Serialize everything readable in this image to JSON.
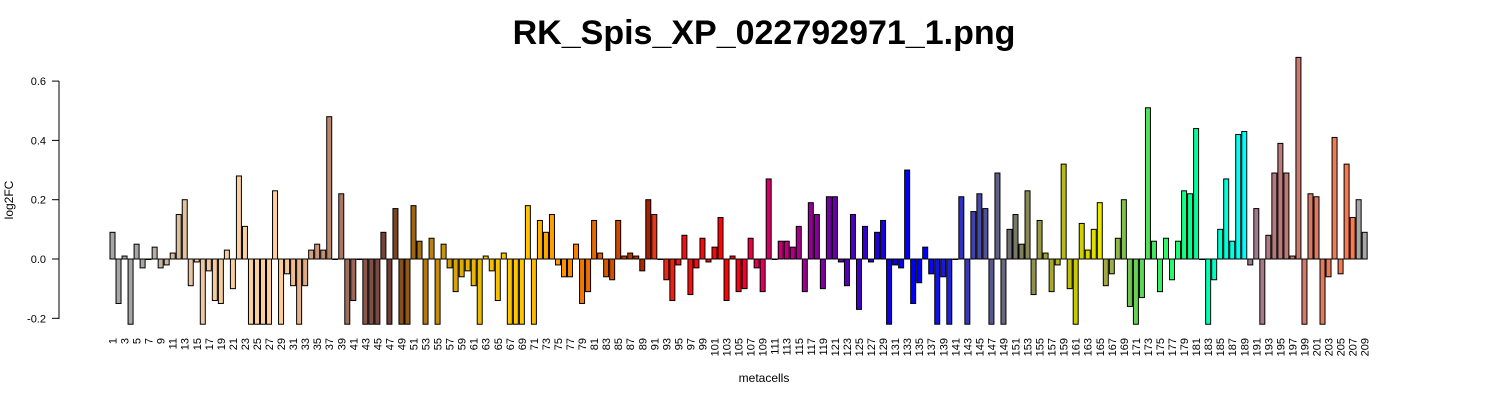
{
  "chart_data": {
    "type": "bar",
    "title": "RK_Spis_XP_022792971_1.png",
    "xlabel": "metacells",
    "ylabel": "log2FC",
    "ylim": [
      -0.2,
      0.68
    ],
    "yticks": [
      -0.2,
      0.0,
      0.2,
      0.4,
      0.6
    ],
    "ytick_labels": [
      "-0.2",
      "0.0",
      "0.2",
      "0.4",
      "0.6"
    ],
    "grid": false,
    "categories": [
      "1",
      "2",
      "3",
      "4",
      "5",
      "6",
      "7",
      "8",
      "9",
      "10",
      "11",
      "12",
      "13",
      "14",
      "15",
      "16",
      "17",
      "18",
      "19",
      "20",
      "21",
      "22",
      "23",
      "24",
      "25",
      "26",
      "27",
      "28",
      "29",
      "30",
      "31",
      "32",
      "33",
      "34",
      "35",
      "36",
      "37",
      "38",
      "39",
      "40",
      "41",
      "42",
      "43",
      "44",
      "45",
      "46",
      "47",
      "48",
      "49",
      "50",
      "51",
      "52",
      "53",
      "54",
      "55",
      "56",
      "57",
      "58",
      "59",
      "60",
      "61",
      "62",
      "63",
      "64",
      "65",
      "66",
      "67",
      "68",
      "69",
      "70",
      "71",
      "72",
      "73",
      "74",
      "75",
      "76",
      "77",
      "78",
      "79",
      "80",
      "81",
      "82",
      "83",
      "84",
      "85",
      "86",
      "87",
      "88",
      "89",
      "90",
      "91",
      "92",
      "93",
      "94",
      "95",
      "96",
      "97",
      "98",
      "99",
      "100",
      "101",
      "102",
      "103",
      "104",
      "105",
      "106",
      "107",
      "108",
      "109",
      "110",
      "111",
      "112",
      "113",
      "114",
      "115",
      "116",
      "117",
      "118",
      "119",
      "120",
      "121",
      "122",
      "123",
      "124",
      "125",
      "126",
      "127",
      "128",
      "129",
      "130",
      "131",
      "132",
      "133",
      "134",
      "135",
      "136",
      "137",
      "138",
      "139",
      "140",
      "141",
      "142",
      "143",
      "144",
      "145",
      "146",
      "147",
      "148",
      "149",
      "150",
      "151",
      "152",
      "153",
      "154",
      "155",
      "156",
      "157",
      "158",
      "159",
      "160",
      "161",
      "162",
      "163",
      "164",
      "165",
      "166",
      "167",
      "168",
      "169",
      "170",
      "171",
      "172",
      "173",
      "174",
      "175",
      "176",
      "177",
      "178",
      "179",
      "180",
      "181",
      "182",
      "183",
      "184",
      "185",
      "186",
      "187",
      "188",
      "189",
      "190",
      "191",
      "192",
      "193",
      "194",
      "195",
      "196",
      "197",
      "198",
      "199",
      "200",
      "201",
      "202",
      "203",
      "204",
      "205",
      "206",
      "207",
      "208",
      "209"
    ],
    "tick_labels": [
      "1",
      "3",
      "5",
      "7",
      "9",
      "11",
      "13",
      "15",
      "17",
      "19",
      "21",
      "23",
      "25",
      "27",
      "29",
      "31",
      "33",
      "35",
      "37",
      "39",
      "41",
      "43",
      "45",
      "47",
      "49",
      "51",
      "53",
      "55",
      "57",
      "59",
      "61",
      "63",
      "65",
      "67",
      "69",
      "71",
      "73",
      "75",
      "77",
      "79",
      "81",
      "83",
      "85",
      "87",
      "89",
      "91",
      "93",
      "95",
      "97",
      "99",
      "101",
      "103",
      "105",
      "107",
      "109",
      "111",
      "113",
      "115",
      "117",
      "119",
      "121",
      "123",
      "125",
      "127",
      "129",
      "131",
      "133",
      "135",
      "137",
      "139",
      "141",
      "143",
      "145",
      "147",
      "149",
      "151",
      "153",
      "155",
      "157",
      "159",
      "161",
      "163",
      "165",
      "167",
      "169",
      "171",
      "173",
      "175",
      "177",
      "179",
      "181",
      "183",
      "185",
      "187",
      "189",
      "191",
      "193",
      "195",
      "197",
      "199",
      "201",
      "203",
      "205",
      "207",
      "209"
    ],
    "values": [
      0.09,
      -0.15,
      0.01,
      -0.22,
      0.05,
      -0.03,
      0.0,
      0.04,
      -0.03,
      -0.02,
      0.02,
      0.15,
      0.2,
      -0.09,
      -0.01,
      -0.22,
      -0.04,
      -0.14,
      -0.15,
      0.03,
      -0.1,
      0.28,
      0.11,
      -0.22,
      -0.22,
      -0.22,
      -0.22,
      0.23,
      -0.22,
      -0.05,
      -0.09,
      -0.22,
      -0.09,
      0.03,
      0.05,
      0.03,
      0.48,
      0.0,
      0.22,
      -0.22,
      -0.14,
      0.0,
      -0.22,
      -0.22,
      -0.22,
      0.09,
      -0.22,
      0.17,
      -0.22,
      -0.22,
      0.18,
      0.06,
      -0.22,
      0.07,
      -0.22,
      0.05,
      -0.03,
      -0.11,
      -0.06,
      -0.04,
      -0.09,
      -0.22,
      0.01,
      -0.04,
      -0.14,
      0.02,
      -0.22,
      -0.22,
      -0.22,
      0.18,
      -0.22,
      0.13,
      0.09,
      0.15,
      -0.02,
      -0.06,
      -0.06,
      0.05,
      -0.15,
      -0.11,
      0.13,
      0.02,
      -0.06,
      -0.07,
      0.13,
      0.01,
      0.02,
      0.01,
      -0.04,
      0.2,
      0.15,
      0.0,
      -0.07,
      -0.14,
      -0.02,
      0.08,
      -0.12,
      -0.03,
      0.07,
      -0.01,
      0.04,
      0.14,
      -0.14,
      0.01,
      -0.11,
      -0.1,
      0.07,
      -0.03,
      -0.11,
      0.27,
      0.0,
      0.06,
      0.06,
      0.04,
      0.11,
      -0.11,
      0.19,
      0.15,
      -0.1,
      0.21,
      0.21,
      -0.01,
      -0.09,
      0.15,
      -0.17,
      0.11,
      -0.01,
      0.09,
      0.13,
      -0.22,
      -0.02,
      -0.03,
      0.3,
      -0.15,
      -0.08,
      0.04,
      -0.05,
      -0.22,
      -0.06,
      -0.22,
      0.0,
      0.21,
      -0.22,
      0.16,
      0.22,
      0.17,
      -0.22,
      0.29,
      -0.22,
      0.1,
      0.15,
      0.05,
      0.23,
      -0.12,
      0.13,
      0.02,
      -0.11,
      -0.02,
      0.32,
      -0.1,
      -0.22,
      0.12,
      0.03,
      0.1,
      0.19,
      -0.09,
      -0.05,
      0.07,
      0.2,
      -0.16,
      -0.22,
      -0.13,
      0.51,
      0.06,
      -0.11,
      0.07,
      -0.07,
      0.06,
      0.23,
      0.22,
      0.44,
      0.0,
      -0.22,
      -0.07,
      0.1,
      0.27,
      0.06,
      0.42,
      0.43,
      -0.02,
      0.17,
      -0.22,
      0.08,
      0.29,
      0.39,
      0.29,
      0.01,
      0.68,
      -0.22,
      0.22,
      0.21,
      -0.22,
      -0.06,
      0.41,
      -0.05,
      0.32,
      0.14,
      0.2,
      0.09
    ],
    "colors": [
      "#a6a6a6",
      "#a6a6a6",
      "#a6a6a6",
      "#a6a6a6",
      "#a6a6a6",
      "#a6a6a6",
      "#b0aaa5",
      "#b9aea4",
      "#c2b2a2",
      "#cbb7a0",
      "#d3bb9e",
      "#d9bea0",
      "#e2c3a0",
      "#e5c4a3",
      "#e9c6a4",
      "#edc8a4",
      "#f0caa5",
      "#f2cba3",
      "#f4cca2",
      "#f6cda1",
      "#f8cea0",
      "#f9cf9e",
      "#fad09d",
      "#fbd09c",
      "#fcd09a",
      "#fdcf98",
      "#fece97",
      "#ffcd96",
      "#ffcc94",
      "#f9c592",
      "#f0bb8d",
      "#e7b288",
      "#dfa982",
      "#d6a07d",
      "#cd9777",
      "#c48e72",
      "#bc866c",
      "#b47d66",
      "#ab7561",
      "#a36d5b",
      "#9b6655",
      "#935e4f",
      "#8c574a",
      "#845044",
      "#7c493e",
      "#754238",
      "#6d3c33",
      "#7a4523",
      "#874f1a",
      "#935a14",
      "#9f6410",
      "#aa6e0e",
      "#b4780c",
      "#bd820b",
      "#c58b0a",
      "#cc930a",
      "#d39b09",
      "#d9a308",
      "#dfaa07",
      "#e4b006",
      "#e9b505",
      "#eeb904",
      "#f2bc03",
      "#f6bf02",
      "#f9c101",
      "#fbc300",
      "#fdc400",
      "#fec500",
      "#ffc600",
      "#ffc000",
      "#ffb800",
      "#ffb000",
      "#ffa800",
      "#ffa000",
      "#ff9800",
      "#ff9000",
      "#fc8800",
      "#f78000",
      "#f27800",
      "#ec7000",
      "#e66800",
      "#df6000",
      "#d85800",
      "#d15000",
      "#ca4800",
      "#c24000",
      "#bb3800",
      "#b33000",
      "#ab2800",
      "#a32000",
      "#e83818",
      "#ea3017",
      "#ec2816",
      "#ee2014",
      "#f01812",
      "#f21010",
      "#f40e0e",
      "#f60c0c",
      "#f80a0a",
      "#fa0808",
      "#fb0606",
      "#fc0404",
      "#fd0202",
      "#fe0000",
      "#f8001a",
      "#f20030",
      "#eb0040",
      "#e4004e",
      "#dc0059",
      "#d30063",
      "#cb006b",
      "#c20073",
      "#b9007a",
      "#b00081",
      "#a60088",
      "#9c008e",
      "#920094",
      "#88009a",
      "#7e00a0",
      "#7400a6",
      "#6a00ac",
      "#6000b2",
      "#5600b8",
      "#4c00be",
      "#4200c4",
      "#3800ca",
      "#2e00d0",
      "#2400d6",
      "#1a00dc",
      "#1000e2",
      "#0600e8",
      "#0000ee",
      "#0000f2",
      "#0000f6",
      "#0000fa",
      "#0000ff",
      "#0808f5",
      "#1010eb",
      "#1818e1",
      "#2020d7",
      "#2828cd",
      "#3030c3",
      "#3838b9",
      "#4040af",
      "#4848a5",
      "#50509b",
      "#585891",
      "#606087",
      "#68687d",
      "#707073",
      "#787869",
      "#80805f",
      "#888855",
      "#90904b",
      "#989841",
      "#a0a037",
      "#a8a82d",
      "#b0b023",
      "#b8b819",
      "#c0c00f",
      "#c8c805",
      "#d0d000",
      "#d8d800",
      "#e0e000",
      "#e8e800",
      "#a4a840",
      "#98b044",
      "#8cb848",
      "#80c04c",
      "#74c850",
      "#68d054",
      "#5cd858",
      "#50e05c",
      "#44e860",
      "#38f064",
      "#2cf868",
      "#20ff6c",
      "#18ff78",
      "#10ff84",
      "#08ff90",
      "#00ff9c",
      "#00ffa8",
      "#00ffb4",
      "#00ffc0",
      "#00ffcc",
      "#00ffd8",
      "#00ffe4",
      "#00fff0",
      "#00fffc",
      "#9a7a8e",
      "#a07a8a",
      "#a67a86",
      "#ac7a82",
      "#b27a7e",
      "#b87a7a",
      "#be7a76",
      "#c47a72",
      "#ca7a6e",
      "#d07a6a",
      "#d67a66",
      "#dc7a62",
      "#e27a5e",
      "#e87a5a",
      "#ee7a56",
      "#f47a52",
      "#fa7a4e",
      "#ff7a4a"
    ]
  }
}
